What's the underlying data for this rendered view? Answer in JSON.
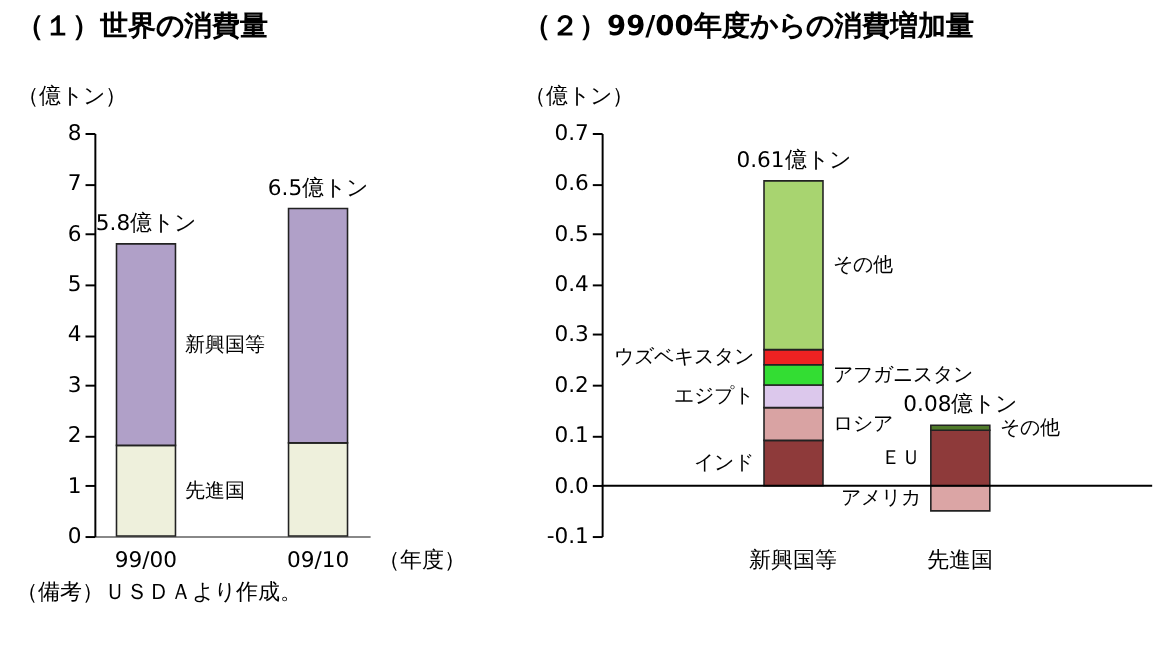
{
  "chart_data": [
    {
      "type": "bar",
      "title": "（１）世界の消費量",
      "xlabel": "（年度）",
      "ylabel": "（億トン）",
      "stacked": true,
      "categories": [
        "99/00",
        "09/10"
      ],
      "series": [
        {
          "name": "先進国",
          "color": "#eef0dc",
          "values": [
            1.8,
            1.85
          ]
        },
        {
          "name": "新興国等",
          "color": "#b0a0c8",
          "values": [
            4.0,
            4.65
          ]
        }
      ],
      "totals": [
        "5.8億トン",
        "6.5億トン"
      ],
      "ylim": [
        0,
        8
      ],
      "yticks": [
        0,
        1,
        2,
        3,
        4,
        5,
        6,
        7,
        8
      ],
      "annotations": [
        "（備考）ＵＳＤＡより作成。"
      ]
    },
    {
      "type": "bar",
      "title": "（２）99/00年度からの消費増加量",
      "ylabel": "（億トン）",
      "stacked": true,
      "categories": [
        "新興国等",
        "先進国"
      ],
      "series": [
        {
          "name": "インド",
          "color": "#8e3a3a",
          "values": [
            0.09,
            null
          ]
        },
        {
          "name": "ロシア",
          "color": "#d9a3a3",
          "values": [
            0.065,
            null
          ]
        },
        {
          "name": "エジプト",
          "color": "#dcc8ec",
          "values": [
            0.045,
            null
          ]
        },
        {
          "name": "アフガニスタン",
          "color": "#33dd33",
          "values": [
            0.04,
            null
          ]
        },
        {
          "name": "ウズベキスタン",
          "color": "#ee2222",
          "values": [
            0.03,
            null
          ]
        },
        {
          "name": "その他",
          "color": "#a8d470",
          "values": [
            0.335,
            null
          ]
        },
        {
          "name": "ＥＵ",
          "color": "#8e3a3a",
          "values": [
            null,
            0.11
          ]
        },
        {
          "name": "その他",
          "color": "#4f7a2a",
          "values": [
            null,
            0.01
          ]
        },
        {
          "name": "アメリカ",
          "color": "#dba5a5",
          "values": [
            null,
            -0.05
          ]
        }
      ],
      "totals": [
        "0.61億トン",
        "0.08億トン"
      ],
      "ylim": [
        -0.1,
        0.7
      ],
      "yticks": [
        -0.1,
        {
          "value": 0,
          "label": "0.0"
        },
        0.1,
        0.2,
        0.3,
        0.4,
        0.5,
        0.6,
        0.7
      ]
    }
  ]
}
